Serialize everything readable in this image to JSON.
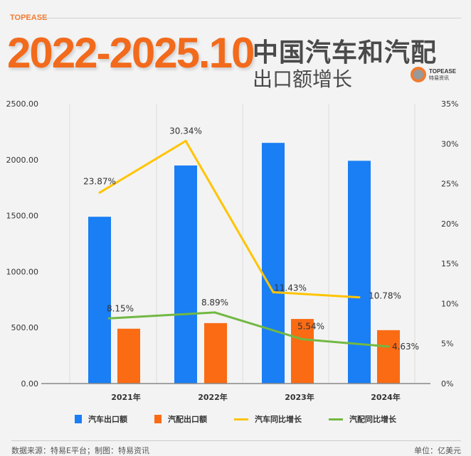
{
  "header": {
    "brand": "TOPEASE",
    "title_main": "2022-2025.10",
    "title_cn": "中国汽车和汽配",
    "subtitle_cn": "出口额增长",
    "logo_en": "TOPEASE",
    "logo_cn": "特易资讯"
  },
  "colors": {
    "car_bar": "#1a7ef5",
    "parts_bar": "#fa6b14",
    "car_line": "#ffc400",
    "parts_line": "#72b843",
    "title": "#f26a1b"
  },
  "chart_data": {
    "type": "bar",
    "categories": [
      "2021年",
      "2022年",
      "2023年",
      "2024年"
    ],
    "series": [
      {
        "name": "汽车出口额",
        "type": "bar",
        "axis": "left",
        "values": [
          1490,
          1948,
          2150,
          1990
        ]
      },
      {
        "name": "汽配出口额",
        "type": "bar",
        "axis": "left",
        "values": [
          490,
          540,
          577,
          477
        ]
      },
      {
        "name": "汽车同比增长",
        "type": "line",
        "axis": "right",
        "values": [
          23.87,
          30.34,
          11.43,
          10.78
        ],
        "labels": [
          "23.87%",
          "30.34%",
          "11.43%",
          "10.78%"
        ]
      },
      {
        "name": "汽配同比增长",
        "type": "line",
        "axis": "right",
        "values": [
          8.15,
          8.89,
          5.54,
          4.63
        ],
        "labels": [
          "8.15%",
          "8.89%",
          "5.54%",
          "4.63%"
        ]
      }
    ],
    "y_left": {
      "ylim": [
        0,
        2500
      ],
      "ticks": [
        "0.00",
        "500.00",
        "1000.00",
        "1500.00",
        "2000.00",
        "2500.00"
      ]
    },
    "y_right": {
      "ylim": [
        0,
        35
      ],
      "ticks": [
        "0%",
        "5%",
        "10%",
        "15%",
        "20%",
        "25%",
        "30%",
        "35%"
      ]
    },
    "grid": "vertical",
    "legend": "bottom"
  },
  "footer": {
    "source": "数据来源：特易E平台；制图：特易资讯",
    "unit": "单位：亿美元"
  }
}
